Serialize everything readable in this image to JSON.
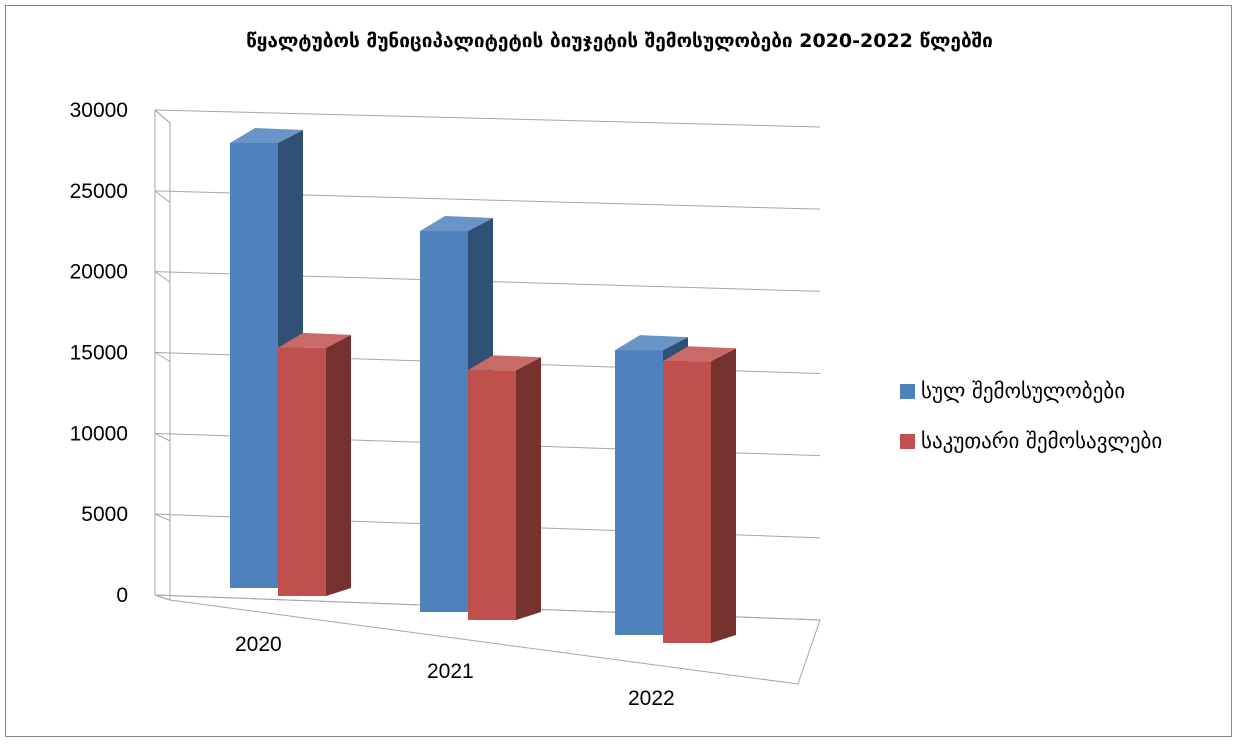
{
  "chart_data": {
    "type": "bar",
    "title": "წყალტუბოს მუნიციპალიტეტის ბიუჯეტის შემოსულობები 2020-2022 წლებში",
    "categories": [
      "2020",
      "2021",
      "2022"
    ],
    "series": [
      {
        "name": "სულ შემოსულობები",
        "values": [
          27800,
          23800,
          17800
        ],
        "color": "#4f81bd"
      },
      {
        "name": "საკუთარი შემოსავლები",
        "values": [
          15500,
          15600,
          17600
        ],
        "color": "#c0504d"
      }
    ],
    "ylim": [
      0,
      30000
    ],
    "yticks": [
      "0",
      "5000",
      "10000",
      "15000",
      "20000",
      "25000",
      "30000"
    ],
    "xlabel": "",
    "ylabel": "",
    "grid": true,
    "legend_position": "right",
    "style": "3d-clustered-column"
  }
}
